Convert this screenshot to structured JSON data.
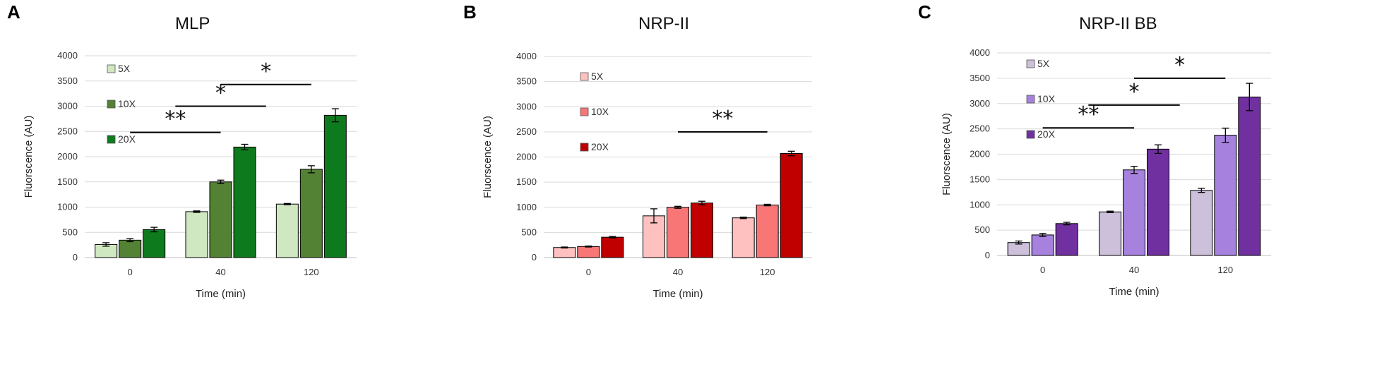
{
  "figure": {
    "panels": [
      {
        "letter": "A"
      },
      {
        "letter": "B"
      },
      {
        "letter": "C"
      }
    ]
  },
  "chart_data": [
    {
      "type": "bar",
      "title": "MLP",
      "xlabel": "Time (min)",
      "ylabel": "Fluorscence (AU)",
      "ylim": [
        0,
        4000
      ],
      "yticks": [
        0,
        500,
        1000,
        1500,
        2000,
        2500,
        3000,
        3500,
        4000
      ],
      "categories": [
        "0",
        "40",
        "120"
      ],
      "grid": true,
      "legend_position": "top-left",
      "series": [
        {
          "name": "5X",
          "color": "#cfe8c2",
          "values": [
            260,
            910,
            1060
          ],
          "errors": [
            35,
            15,
            12
          ]
        },
        {
          "name": "10X",
          "color": "#548235",
          "values": [
            345,
            1500,
            1750
          ],
          "errors": [
            30,
            35,
            70
          ]
        },
        {
          "name": "20X",
          "color": "#0e7a1e",
          "values": [
            555,
            2190,
            2820
          ],
          "errors": [
            45,
            55,
            130
          ]
        }
      ],
      "significance": [
        {
          "label": "**",
          "from": 0.5,
          "to": 1.5,
          "y": 2480
        },
        {
          "label": "*",
          "from": 1.0,
          "to": 2.0,
          "y": 3000
        },
        {
          "label": "*",
          "from": 1.5,
          "to": 2.5,
          "y": 3430
        }
      ]
    },
    {
      "type": "bar",
      "title": "NRP-II",
      "xlabel": "Time (min)",
      "ylabel": "Fluorscence (AU)",
      "ylim": [
        0,
        4000
      ],
      "yticks": [
        0,
        500,
        1000,
        1500,
        2000,
        2500,
        3000,
        3500,
        4000
      ],
      "categories": [
        "0",
        "40",
        "120"
      ],
      "grid": true,
      "legend_position": "top-left",
      "series": [
        {
          "name": "5X",
          "color": "#ffc0c0",
          "values": [
            200,
            830,
            790
          ],
          "errors": [
            10,
            140,
            15
          ]
        },
        {
          "name": "10X",
          "color": "#f87676",
          "values": [
            220,
            1000,
            1045
          ],
          "errors": [
            10,
            20,
            15
          ]
        },
        {
          "name": "20X",
          "color": "#c00000",
          "values": [
            405,
            1085,
            2070
          ],
          "errors": [
            15,
            35,
            45
          ]
        }
      ],
      "significance": [
        {
          "label": "**",
          "from": 1.5,
          "to": 2.5,
          "y": 2500
        }
      ]
    },
    {
      "type": "bar",
      "title": "NRP-II BB",
      "xlabel": "Time (min)",
      "ylabel": "Fluorscence (AU)",
      "ylim": [
        0,
        4000
      ],
      "yticks": [
        0,
        500,
        1000,
        1500,
        2000,
        2500,
        3000,
        3500,
        4000
      ],
      "categories": [
        "0",
        "40",
        "120"
      ],
      "grid": true,
      "legend_position": "top-left",
      "series": [
        {
          "name": "5X",
          "color": "#ccc0da",
          "values": [
            255,
            860,
            1285
          ],
          "errors": [
            30,
            15,
            40
          ]
        },
        {
          "name": "10X",
          "color": "#a681de",
          "values": [
            405,
            1690,
            2375
          ],
          "errors": [
            30,
            70,
            140
          ]
        },
        {
          "name": "20X",
          "color": "#7030a0",
          "values": [
            630,
            2100,
            3130
          ],
          "errors": [
            25,
            85,
            270
          ]
        }
      ],
      "significance": [
        {
          "label": "**",
          "from": 0.5,
          "to": 1.5,
          "y": 2520
        },
        {
          "label": "*",
          "from": 1.0,
          "to": 2.0,
          "y": 2970
        },
        {
          "label": "*",
          "from": 1.5,
          "to": 2.5,
          "y": 3500
        }
      ]
    }
  ]
}
